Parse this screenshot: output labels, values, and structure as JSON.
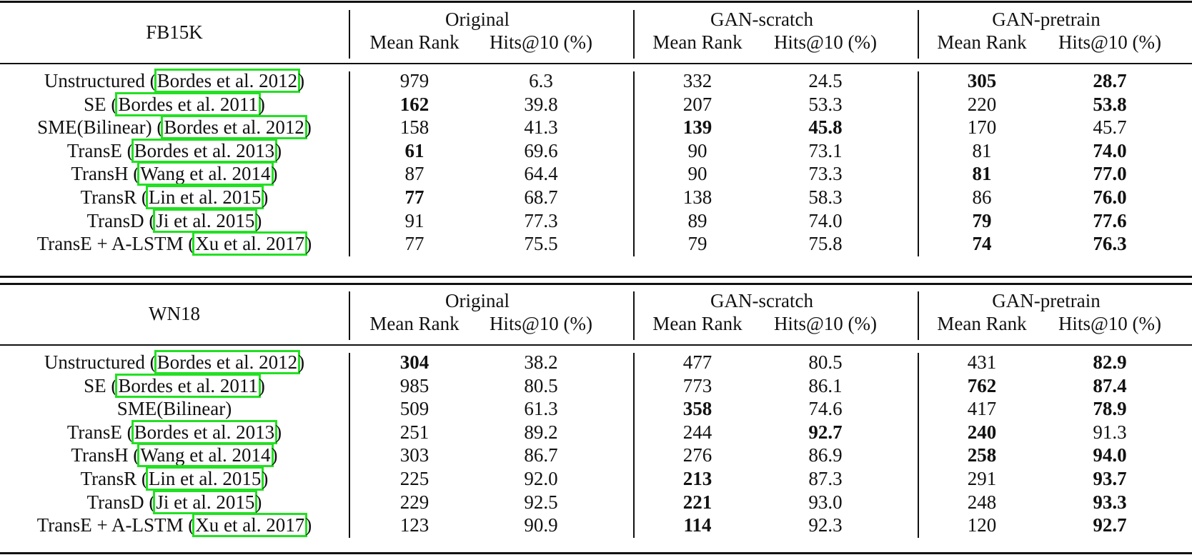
{
  "groups": [
    "Original",
    "GAN-scratch",
    "GAN-pretrain"
  ],
  "subheaders": [
    "Mean Rank",
    "Hits@10 (%)"
  ],
  "highlight_color": "#22e022",
  "sections": [
    {
      "dataset": "FB15K",
      "rows": [
        {
          "model": "Unstructured (",
          "cite": "Bordes et al. 2012",
          "close": ")",
          "values": [
            "979",
            "6.3",
            "332",
            "24.5",
            "305",
            "28.7"
          ],
          "bold": [
            false,
            false,
            false,
            false,
            true,
            true
          ]
        },
        {
          "model": "SE (",
          "cite": "Bordes et al. 2011",
          "close": ")",
          "values": [
            "162",
            "39.8",
            "207",
            "53.3",
            "220",
            "53.8"
          ],
          "bold": [
            true,
            false,
            false,
            false,
            false,
            true
          ]
        },
        {
          "model": "SME(Bilinear) (",
          "cite": "Bordes et al. 2012",
          "close": ")",
          "values": [
            "158",
            "41.3",
            "139",
            "45.8",
            "170",
            "45.7"
          ],
          "bold": [
            false,
            false,
            true,
            true,
            false,
            false
          ]
        },
        {
          "model": "TransE (",
          "cite": "Bordes et al. 2013",
          "close": ")",
          "values": [
            "61",
            "69.6",
            "90",
            "73.1",
            "81",
            "74.0"
          ],
          "bold": [
            true,
            false,
            false,
            false,
            false,
            true
          ]
        },
        {
          "model": "TransH (",
          "cite": "Wang et al. 2014",
          "close": ")",
          "values": [
            "87",
            "64.4",
            "90",
            "73.3",
            "81",
            "77.0"
          ],
          "bold": [
            false,
            false,
            false,
            false,
            true,
            true
          ]
        },
        {
          "model": "TransR (",
          "cite": "Lin et al. 2015",
          "close": ")",
          "values": [
            "77",
            "68.7",
            "138",
            "58.3",
            "86",
            "76.0"
          ],
          "bold": [
            true,
            false,
            false,
            false,
            false,
            true
          ]
        },
        {
          "model": "TransD (",
          "cite": "Ji et al. 2015",
          "close": ")",
          "values": [
            "91",
            "77.3",
            "89",
            "74.0",
            "79",
            "77.6"
          ],
          "bold": [
            false,
            false,
            false,
            false,
            true,
            true
          ]
        },
        {
          "model": "TransE + A-LSTM (",
          "cite": "Xu et al. 2017",
          "close": ")",
          "values": [
            "77",
            "75.5",
            "79",
            "75.8",
            "74",
            "76.3"
          ],
          "bold": [
            false,
            false,
            false,
            false,
            true,
            true
          ]
        }
      ]
    },
    {
      "dataset": "WN18",
      "rows": [
        {
          "model": "Unstructured (",
          "cite": "Bordes et al. 2012",
          "close": ")",
          "values": [
            "304",
            "38.2",
            "477",
            "80.5",
            "431",
            "82.9"
          ],
          "bold": [
            true,
            false,
            false,
            false,
            false,
            true
          ]
        },
        {
          "model": "SE (",
          "cite": "Bordes et al. 2011",
          "close": ")",
          "values": [
            "985",
            "80.5",
            "773",
            "86.1",
            "762",
            "87.4"
          ],
          "bold": [
            false,
            false,
            false,
            false,
            true,
            true
          ]
        },
        {
          "model": "SME(Bilinear)",
          "cite": "",
          "close": "",
          "values": [
            "509",
            "61.3",
            "358",
            "74.6",
            "417",
            "78.9"
          ],
          "bold": [
            false,
            false,
            true,
            false,
            false,
            true
          ]
        },
        {
          "model": "TransE (",
          "cite": "Bordes et al. 2013",
          "close": ")",
          "values": [
            "251",
            "89.2",
            "244",
            "92.7",
            "240",
            "91.3"
          ],
          "bold": [
            false,
            false,
            false,
            true,
            true,
            false
          ]
        },
        {
          "model": "TransH (",
          "cite": "Wang et al. 2014",
          "close": ")",
          "values": [
            "303",
            "86.7",
            "276",
            "86.9",
            "258",
            "94.0"
          ],
          "bold": [
            false,
            false,
            false,
            false,
            true,
            true
          ]
        },
        {
          "model": "TransR (",
          "cite": "Lin et al. 2015",
          "close": ")",
          "values": [
            "225",
            "92.0",
            "213",
            "87.3",
            "291",
            "93.7"
          ],
          "bold": [
            false,
            false,
            true,
            false,
            false,
            true
          ]
        },
        {
          "model": "TransD (",
          "cite": "Ji et al. 2015",
          "close": ")",
          "values": [
            "229",
            "92.5",
            "221",
            "93.0",
            "248",
            "93.3"
          ],
          "bold": [
            false,
            false,
            true,
            false,
            false,
            true
          ]
        },
        {
          "model": "TransE + A-LSTM (",
          "cite": "Xu et al. 2017",
          "close": ")",
          "values": [
            "123",
            "90.9",
            "114",
            "92.3",
            "120",
            "92.7"
          ],
          "bold": [
            false,
            false,
            true,
            false,
            false,
            true
          ]
        }
      ]
    }
  ]
}
